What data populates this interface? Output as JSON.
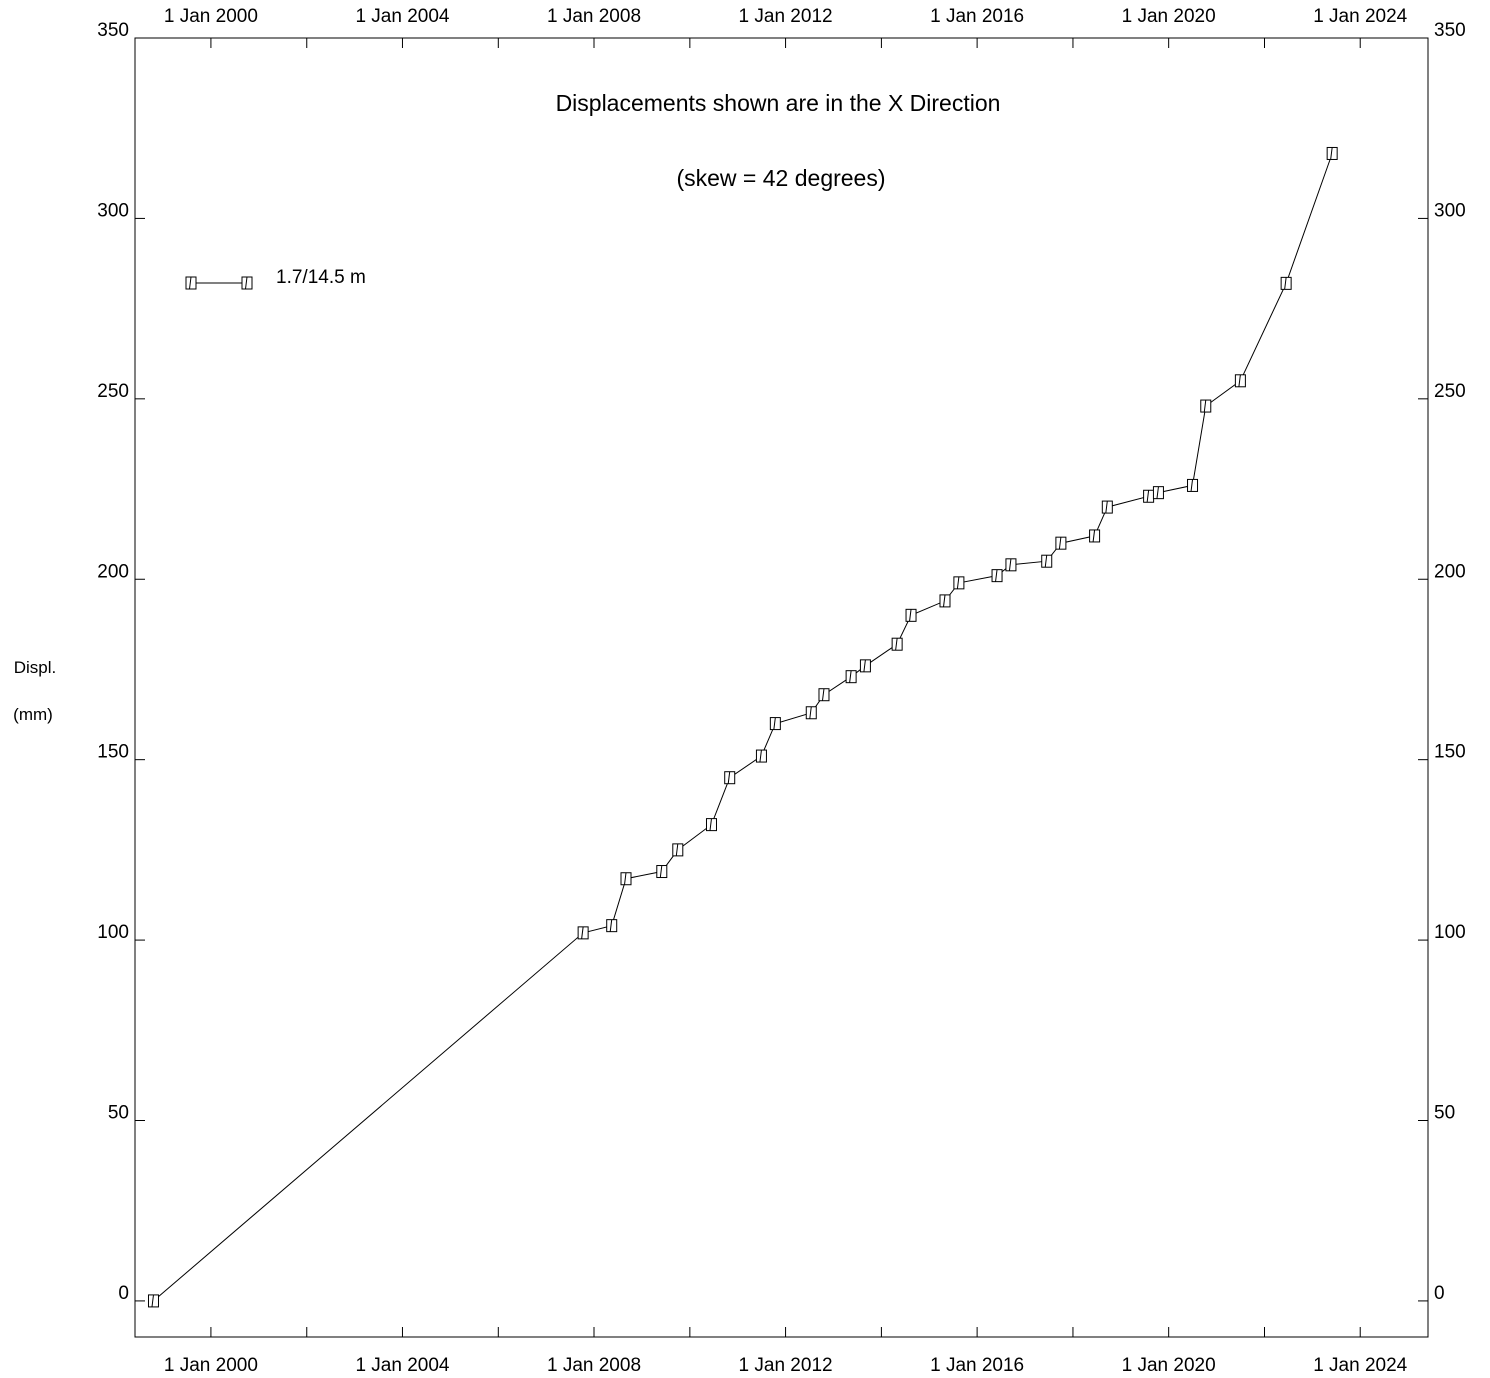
{
  "chart_data": {
    "type": "line",
    "title": "Displacements shown are in the  X Direction",
    "subtitle": "(skew = 42 degrees)",
    "ylabel_line1": "Displ.",
    "ylabel_line2": "(mm)",
    "xlabel": "",
    "x_scale": "date",
    "xlim": [
      "1998-06-01",
      "2025-06-01"
    ],
    "ylim": [
      -10,
      350
    ],
    "x_ticks": [
      "2000-01-01",
      "2004-01-01",
      "2008-01-01",
      "2012-01-01",
      "2016-01-01",
      "2020-01-01",
      "2024-01-01"
    ],
    "x_minor_ticks": [
      "2002-01-01",
      "2006-01-01",
      "2010-01-01",
      "2014-01-01",
      "2018-01-01",
      "2022-01-01"
    ],
    "x_tick_labels": [
      "1 Jan 2000",
      "1 Jan 2004",
      "1 Jan 2008",
      "1 Jan 2012",
      "1 Jan 2016",
      "1 Jan 2020",
      "1 Jan 2024"
    ],
    "y_ticks": [
      0,
      50,
      100,
      150,
      200,
      250,
      300,
      350
    ],
    "y_tick_labels": [
      "0",
      "50",
      "100",
      "150",
      "200",
      "250",
      "300",
      "350"
    ],
    "grid": false,
    "legend_position": "top-left",
    "series": [
      {
        "name": "1.7/14.5 m",
        "marker": "square",
        "color": "#000000",
        "x": [
          "1998-10-20",
          "2007-10-10",
          "2008-05-15",
          "2008-09-01",
          "2009-06-01",
          "2009-10-01",
          "2010-06-15",
          "2010-11-01",
          "2011-07-01",
          "2011-10-15",
          "2012-07-15",
          "2012-10-20",
          "2013-05-15",
          "2013-09-01",
          "2014-05-01",
          "2014-08-15",
          "2015-05-01",
          "2015-08-15",
          "2016-06-01",
          "2016-09-15",
          "2017-06-15",
          "2017-10-01",
          "2018-06-15",
          "2018-09-20",
          "2019-08-01",
          "2019-10-15",
          "2020-07-01",
          "2020-10-10",
          "2021-07-01",
          "2022-06-15",
          "2023-06-01"
        ],
        "y": [
          0,
          102,
          104,
          117,
          119,
          125,
          132,
          145,
          151,
          160,
          163,
          168,
          173,
          176,
          182,
          190,
          194,
          199,
          201,
          204,
          205,
          210,
          212,
          220,
          223,
          224,
          226,
          248,
          255,
          282,
          318
        ]
      }
    ]
  }
}
